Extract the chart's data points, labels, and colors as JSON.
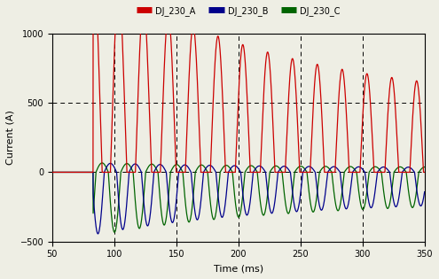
{
  "xlabel": "Time (ms)",
  "ylabel": "Current (A)",
  "xlim": [
    50,
    350
  ],
  "ylim": [
    -500,
    1000
  ],
  "yticks": [
    -500,
    0,
    500,
    1000
  ],
  "xticks": [
    50,
    100,
    150,
    200,
    250,
    300,
    350
  ],
  "hline_y": 500,
  "hline_y2": 0,
  "vlines_x": [
    100,
    150,
    200,
    250,
    300
  ],
  "legend_labels": [
    "DJ_230_A",
    "DJ_230_B",
    "DJ_230_C"
  ],
  "legend_colors": [
    "#cc0000",
    "#00008b",
    "#006400"
  ],
  "background_color": "#eeeee4",
  "freq_hz": 50,
  "start_ms": 83,
  "end_ms": 350,
  "dt_ms": 0.1,
  "tau_ms": 150,
  "A_red_peak_init": 950,
  "A_red_peak_final": 490,
  "dc_red_init": 500,
  "A_blue_peak_init": 450,
  "A_blue_peak_final": 200,
  "A_green_peak_init": 460,
  "A_green_peak_final": 210,
  "phi_red_deg": 80,
  "phi_blue_deg": 200,
  "phi_green_deg": 320
}
